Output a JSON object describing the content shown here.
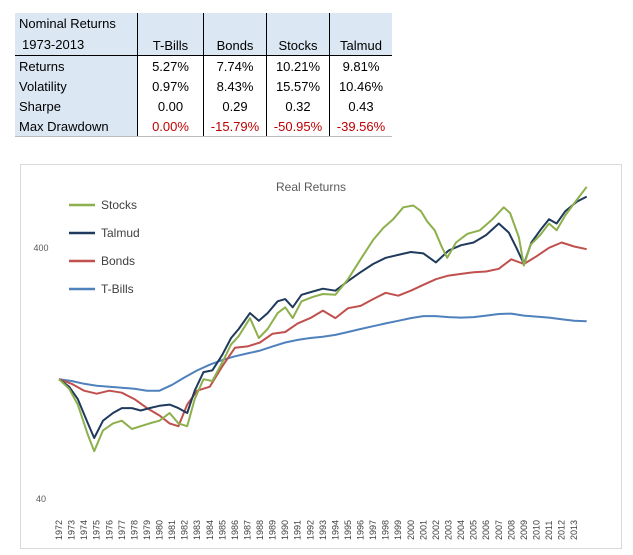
{
  "table": {
    "corner_line1": "Nominal Returns",
    "corner_line2": "1973-2013",
    "columns": [
      "T-Bills",
      "Bonds",
      "Stocks",
      "Talmud"
    ],
    "rows": [
      {
        "label": "Returns",
        "values": [
          "5.27%",
          "7.74%",
          "10.21%",
          "9.81%"
        ],
        "negative": [
          false,
          false,
          false,
          false
        ]
      },
      {
        "label": "Volatility",
        "values": [
          "0.97%",
          "8.43%",
          "15.57%",
          "10.46%"
        ],
        "negative": [
          false,
          false,
          false,
          false
        ]
      },
      {
        "label": "Sharpe",
        "values": [
          "0.00",
          "0.29",
          "0.32",
          "0.43"
        ],
        "negative": [
          false,
          false,
          false,
          false
        ]
      },
      {
        "label": "Max Drawdown",
        "values": [
          "0.00%",
          "-15.79%",
          "-50.95%",
          "-39.56%"
        ],
        "negative": [
          true,
          true,
          true,
          true
        ]
      }
    ],
    "colors": {
      "header_bg": "#dbe7f3",
      "negative": "#c00000"
    }
  },
  "chart_data": {
    "type": "line",
    "title": "Real Returns",
    "xlabel": "",
    "ylabel": "",
    "y_scale": "log",
    "ylim": [
      40,
      780
    ],
    "xlim": [
      1972,
      2014.5
    ],
    "y_ticks": [
      40,
      400
    ],
    "y_tick_labels": [
      "40",
      "400"
    ],
    "x_ticks": [
      1972,
      1973,
      1974,
      1975,
      1976,
      1977,
      1978,
      1979,
      1980,
      1981,
      1982,
      1983,
      1984,
      1985,
      1986,
      1987,
      1988,
      1989,
      1990,
      1991,
      1992,
      1993,
      1994,
      1995,
      1996,
      1997,
      1998,
      1999,
      2000,
      2001,
      2002,
      2003,
      2004,
      2005,
      2006,
      2007,
      2008,
      2009,
      2010,
      2011,
      2012,
      2013
    ],
    "grid": false,
    "legend": "top-left",
    "series": [
      {
        "name": "Stocks",
        "color": "#8db04c",
        "points": [
          [
            1972,
            120
          ],
          [
            1972.8,
            110
          ],
          [
            1973.5,
            95
          ],
          [
            1974.3,
            72
          ],
          [
            1974.8,
            62
          ],
          [
            1975.5,
            75
          ],
          [
            1976.3,
            80
          ],
          [
            1977,
            82
          ],
          [
            1977.8,
            76
          ],
          [
            1978.5,
            78
          ],
          [
            1979.2,
            80
          ],
          [
            1980,
            82
          ],
          [
            1980.8,
            88
          ],
          [
            1981.5,
            80
          ],
          [
            1982.2,
            78
          ],
          [
            1982.8,
            100
          ],
          [
            1983.5,
            120
          ],
          [
            1984.2,
            118
          ],
          [
            1985,
            140
          ],
          [
            1985.7,
            165
          ],
          [
            1986.3,
            178
          ],
          [
            1987.2,
            210
          ],
          [
            1987.9,
            175
          ],
          [
            1988.6,
            190
          ],
          [
            1989.4,
            220
          ],
          [
            1990,
            232
          ],
          [
            1990.6,
            210
          ],
          [
            1991.3,
            245
          ],
          [
            1992.2,
            255
          ],
          [
            1993,
            262
          ],
          [
            1994,
            260
          ],
          [
            1995,
            300
          ],
          [
            1996,
            360
          ],
          [
            1997,
            430
          ],
          [
            1997.8,
            480
          ],
          [
            1998.6,
            520
          ],
          [
            1999.4,
            580
          ],
          [
            2000.2,
            590
          ],
          [
            2000.8,
            560
          ],
          [
            2001.3,
            510
          ],
          [
            2001.9,
            470
          ],
          [
            2002.5,
            400
          ],
          [
            2002.9,
            365
          ],
          [
            2003.6,
            420
          ],
          [
            2004.5,
            455
          ],
          [
            2005.5,
            470
          ],
          [
            2006.5,
            520
          ],
          [
            2007.4,
            580
          ],
          [
            2007.9,
            550
          ],
          [
            2008.6,
            440
          ],
          [
            2009.0,
            340
          ],
          [
            2009.5,
            410
          ],
          [
            2010.3,
            450
          ],
          [
            2011,
            500
          ],
          [
            2011.6,
            470
          ],
          [
            2012.3,
            540
          ],
          [
            2013.2,
            620
          ],
          [
            2014,
            700
          ]
        ]
      },
      {
        "name": "Talmud",
        "color": "#1f3a5c",
        "points": [
          [
            1972,
            120
          ],
          [
            1972.8,
            112
          ],
          [
            1973.5,
            100
          ],
          [
            1974.3,
            80
          ],
          [
            1974.8,
            70
          ],
          [
            1975.5,
            82
          ],
          [
            1976.3,
            88
          ],
          [
            1977,
            92
          ],
          [
            1977.8,
            92
          ],
          [
            1978.5,
            90
          ],
          [
            1979.2,
            92
          ],
          [
            1980,
            94
          ],
          [
            1980.8,
            95
          ],
          [
            1981.5,
            92
          ],
          [
            1982.2,
            88
          ],
          [
            1982.8,
            108
          ],
          [
            1983.5,
            128
          ],
          [
            1984.2,
            130
          ],
          [
            1985,
            150
          ],
          [
            1985.7,
            175
          ],
          [
            1986.3,
            190
          ],
          [
            1987.2,
            220
          ],
          [
            1987.9,
            205
          ],
          [
            1988.6,
            220
          ],
          [
            1989.4,
            245
          ],
          [
            1990,
            250
          ],
          [
            1990.6,
            232
          ],
          [
            1991.3,
            260
          ],
          [
            1992.2,
            268
          ],
          [
            1993,
            275
          ],
          [
            1994,
            270
          ],
          [
            1995,
            295
          ],
          [
            1996,
            320
          ],
          [
            1997,
            345
          ],
          [
            1998,
            365
          ],
          [
            1999,
            375
          ],
          [
            2000,
            385
          ],
          [
            2001,
            380
          ],
          [
            2002,
            350
          ],
          [
            2003,
            390
          ],
          [
            2004,
            410
          ],
          [
            2005,
            420
          ],
          [
            2006,
            450
          ],
          [
            2007,
            500
          ],
          [
            2007.8,
            460
          ],
          [
            2008.4,
            400
          ],
          [
            2009.0,
            345
          ],
          [
            2009.6,
            420
          ],
          [
            2010.3,
            470
          ],
          [
            2011,
            520
          ],
          [
            2011.6,
            500
          ],
          [
            2012.3,
            560
          ],
          [
            2013.2,
            610
          ],
          [
            2014,
            640
          ]
        ]
      },
      {
        "name": "Bonds",
        "color": "#c0504d",
        "points": [
          [
            1972,
            120
          ],
          [
            1973,
            115
          ],
          [
            1974,
            108
          ],
          [
            1975,
            105
          ],
          [
            1976,
            108
          ],
          [
            1977,
            106
          ],
          [
            1978,
            100
          ],
          [
            1979,
            92
          ],
          [
            1980,
            86
          ],
          [
            1980.8,
            80
          ],
          [
            1981.5,
            78
          ],
          [
            1982.2,
            95
          ],
          [
            1983,
            108
          ],
          [
            1984,
            112
          ],
          [
            1985,
            135
          ],
          [
            1986,
            160
          ],
          [
            1987,
            162
          ],
          [
            1988,
            168
          ],
          [
            1989,
            182
          ],
          [
            1990,
            185
          ],
          [
            1991,
            200
          ],
          [
            1992,
            210
          ],
          [
            1993,
            225
          ],
          [
            1994,
            210
          ],
          [
            1995,
            230
          ],
          [
            1996,
            235
          ],
          [
            1997,
            250
          ],
          [
            1998,
            265
          ],
          [
            1999,
            258
          ],
          [
            2000,
            270
          ],
          [
            2001,
            285
          ],
          [
            2002,
            300
          ],
          [
            2003,
            310
          ],
          [
            2004,
            315
          ],
          [
            2005,
            320
          ],
          [
            2006,
            322
          ],
          [
            2007,
            330
          ],
          [
            2008,
            360
          ],
          [
            2009,
            345
          ],
          [
            2010,
            370
          ],
          [
            2011,
            400
          ],
          [
            2012,
            420
          ],
          [
            2013,
            405
          ],
          [
            2014,
            395
          ]
        ]
      },
      {
        "name": "T-Bills",
        "color": "#4f81bd",
        "points": [
          [
            1972,
            120
          ],
          [
            1973,
            118
          ],
          [
            1974,
            115
          ],
          [
            1975,
            113
          ],
          [
            1976,
            112
          ],
          [
            1977,
            111
          ],
          [
            1978,
            110
          ],
          [
            1979,
            108
          ],
          [
            1980,
            108
          ],
          [
            1981,
            114
          ],
          [
            1982,
            122
          ],
          [
            1983,
            130
          ],
          [
            1984,
            137
          ],
          [
            1985,
            143
          ],
          [
            1986,
            148
          ],
          [
            1987,
            152
          ],
          [
            1988,
            156
          ],
          [
            1989,
            162
          ],
          [
            1990,
            168
          ],
          [
            1991,
            172
          ],
          [
            1992,
            175
          ],
          [
            1993,
            177
          ],
          [
            1994,
            180
          ],
          [
            1995,
            185
          ],
          [
            1996,
            190
          ],
          [
            1997,
            195
          ],
          [
            1998,
            200
          ],
          [
            1999,
            205
          ],
          [
            2000,
            210
          ],
          [
            2001,
            214
          ],
          [
            2002,
            214
          ],
          [
            2003,
            212
          ],
          [
            2004,
            211
          ],
          [
            2005,
            212
          ],
          [
            2006,
            215
          ],
          [
            2007,
            218
          ],
          [
            2008,
            219
          ],
          [
            2009,
            215
          ],
          [
            2010,
            213
          ],
          [
            2011,
            211
          ],
          [
            2012,
            208
          ],
          [
            2013,
            205
          ],
          [
            2014,
            204
          ]
        ]
      }
    ]
  }
}
